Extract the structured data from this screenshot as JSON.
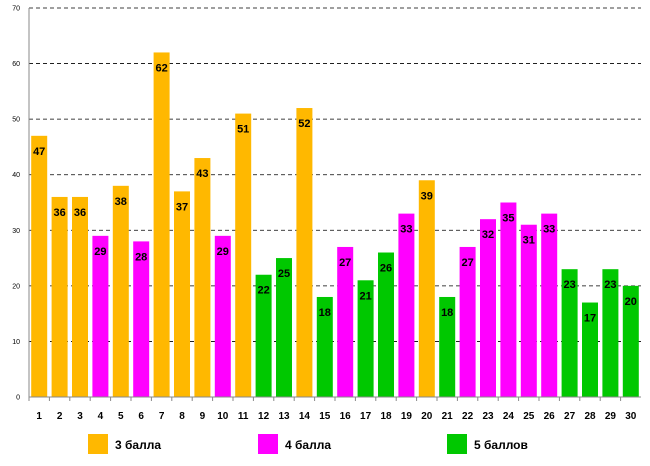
{
  "chart_data": {
    "type": "bar",
    "title": "",
    "xlabel": "",
    "ylabel": "",
    "ylim": [
      0,
      70
    ],
    "yticks": [
      0,
      10,
      20,
      30,
      40,
      50,
      60,
      70
    ],
    "grid": true,
    "legend_position": "bottom",
    "categories": [
      "1",
      "2",
      "3",
      "4",
      "5",
      "6",
      "7",
      "8",
      "9",
      "10",
      "11",
      "12",
      "13",
      "14",
      "15",
      "16",
      "17",
      "18",
      "19",
      "20",
      "21",
      "22",
      "23",
      "24",
      "25",
      "26",
      "27",
      "28",
      "29",
      "30"
    ],
    "values": [
      47,
      36,
      36,
      29,
      38,
      28,
      62,
      37,
      43,
      29,
      51,
      22,
      25,
      52,
      18,
      27,
      21,
      26,
      33,
      39,
      18,
      27,
      32,
      35,
      31,
      33,
      23,
      17,
      23,
      20
    ],
    "bar_groups": [
      "3",
      "3",
      "3",
      "4",
      "3",
      "4",
      "3",
      "3",
      "3",
      "4",
      "3",
      "5",
      "5",
      "3",
      "5",
      "4",
      "5",
      "5",
      "4",
      "3",
      "5",
      "4",
      "4",
      "4",
      "4",
      "4",
      "5",
      "5",
      "5",
      "5"
    ],
    "series": [
      {
        "key": "3",
        "name": "3 балла",
        "color": "#ffb800"
      },
      {
        "key": "4",
        "name": "4 балла",
        "color": "#ff00ff"
      },
      {
        "key": "5",
        "name": "5 баллов",
        "color": "#00c800"
      }
    ]
  }
}
